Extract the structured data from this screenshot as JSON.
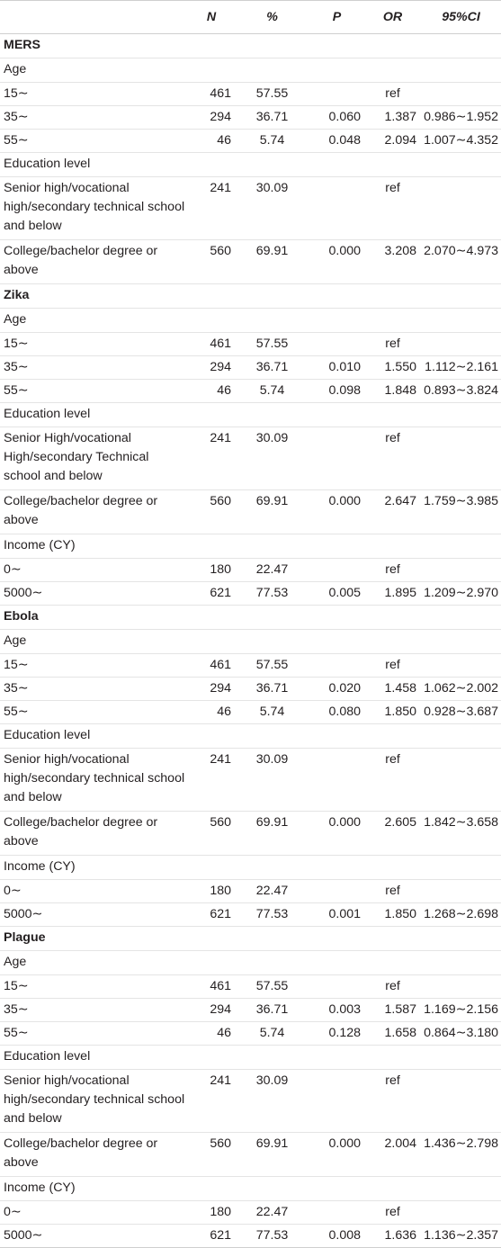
{
  "header": [
    "",
    "N",
    "%",
    "P",
    "OR",
    "95%CI"
  ],
  "rows": [
    {
      "type": "section",
      "label": "MERS"
    },
    {
      "type": "sub",
      "label": "Age"
    },
    {
      "type": "data",
      "lines": 1,
      "label": "15∼",
      "n": "461",
      "pct": "57.55",
      "p": "",
      "or": "ref",
      "ci": ""
    },
    {
      "type": "data",
      "lines": 1,
      "label": "35∼",
      "n": "294",
      "pct": "36.71",
      "p": "0.060",
      "or": "1.387",
      "ci": "0.986∼1.952"
    },
    {
      "type": "data",
      "lines": 1,
      "label": "55∼",
      "n": "46",
      "pct": "5.74",
      "p": "0.048",
      "or": "2.094",
      "ci": "1.007∼4.352"
    },
    {
      "type": "sub",
      "label": "Education level"
    },
    {
      "type": "data",
      "lines": 3,
      "label": "Senior high/vocational high/secondary technical school and below",
      "n": "241",
      "pct": "30.09",
      "p": "",
      "or": "ref",
      "ci": ""
    },
    {
      "type": "data",
      "lines": 2,
      "label": "College/bachelor degree or above",
      "n": "560",
      "pct": "69.91",
      "p": "0.000",
      "or": "3.208",
      "ci": "2.070∼4.973"
    },
    {
      "type": "section",
      "label": "Zika"
    },
    {
      "type": "sub",
      "label": "Age"
    },
    {
      "type": "data",
      "lines": 1,
      "label": "15∼",
      "n": "461",
      "pct": "57.55",
      "p": "",
      "or": "ref",
      "ci": ""
    },
    {
      "type": "data",
      "lines": 1,
      "label": "35∼",
      "n": "294",
      "pct": "36.71",
      "p": "0.010",
      "or": "1.550",
      "ci": "1.112∼2.161"
    },
    {
      "type": "data",
      "lines": 1,
      "label": "55∼",
      "n": "46",
      "pct": "5.74",
      "p": "0.098",
      "or": "1.848",
      "ci": "0.893∼3.824"
    },
    {
      "type": "sub",
      "label": "Education level"
    },
    {
      "type": "data",
      "lines": 3,
      "label": "Senior High/vocational High/secondary Technical school and below",
      "n": "241",
      "pct": "30.09",
      "p": "",
      "or": "ref",
      "ci": ""
    },
    {
      "type": "data",
      "lines": 2,
      "label": "College/bachelor degree or above",
      "n": "560",
      "pct": "69.91",
      "p": "0.000",
      "or": "2.647",
      "ci": "1.759∼3.985"
    },
    {
      "type": "sub",
      "label": "Income (CY)"
    },
    {
      "type": "data",
      "lines": 1,
      "label": "0∼",
      "n": "180",
      "pct": "22.47",
      "p": "",
      "or": "ref",
      "ci": ""
    },
    {
      "type": "data",
      "lines": 1,
      "label": "5000∼",
      "n": "621",
      "pct": "77.53",
      "p": "0.005",
      "or": "1.895",
      "ci": "1.209∼2.970"
    },
    {
      "type": "section",
      "label": "Ebola"
    },
    {
      "type": "sub",
      "label": "Age"
    },
    {
      "type": "data",
      "lines": 1,
      "label": "15∼",
      "n": "461",
      "pct": "57.55",
      "p": "",
      "or": "ref",
      "ci": ""
    },
    {
      "type": "data",
      "lines": 1,
      "label": "35∼",
      "n": "294",
      "pct": "36.71",
      "p": "0.020",
      "or": "1.458",
      "ci": "1.062∼2.002"
    },
    {
      "type": "data",
      "lines": 1,
      "label": "55∼",
      "n": "46",
      "pct": "5.74",
      "p": "0.080",
      "or": "1.850",
      "ci": "0.928∼3.687"
    },
    {
      "type": "sub",
      "label": "Education level"
    },
    {
      "type": "data",
      "lines": 3,
      "label": "Senior high/vocational high/secondary technical school and below",
      "n": "241",
      "pct": "30.09",
      "p": "",
      "or": "ref",
      "ci": ""
    },
    {
      "type": "data",
      "lines": 2,
      "label": "College/bachelor degree or above",
      "n": "560",
      "pct": "69.91",
      "p": "0.000",
      "or": "2.605",
      "ci": "1.842∼3.658"
    },
    {
      "type": "sub",
      "label": "Income (CY)"
    },
    {
      "type": "data",
      "lines": 1,
      "label": "0∼",
      "n": "180",
      "pct": "22.47",
      "p": "",
      "or": "ref",
      "ci": ""
    },
    {
      "type": "data",
      "lines": 1,
      "label": "5000∼",
      "n": "621",
      "pct": "77.53",
      "p": "0.001",
      "or": "1.850",
      "ci": "1.268∼2.698"
    },
    {
      "type": "section",
      "label": "Plague"
    },
    {
      "type": "sub",
      "label": "Age"
    },
    {
      "type": "data",
      "lines": 1,
      "label": "15∼",
      "n": "461",
      "pct": "57.55",
      "p": "",
      "or": "ref",
      "ci": ""
    },
    {
      "type": "data",
      "lines": 1,
      "label": "35∼",
      "n": "294",
      "pct": "36.71",
      "p": "0.003",
      "or": "1.587",
      "ci": "1.169∼2.156"
    },
    {
      "type": "data",
      "lines": 1,
      "label": "55∼",
      "n": "46",
      "pct": "5.74",
      "p": "0.128",
      "or": "1.658",
      "ci": "0.864∼3.180"
    },
    {
      "type": "sub",
      "label": "Education level"
    },
    {
      "type": "data",
      "lines": 3,
      "label": "Senior high/vocational high/secondary technical school and below",
      "n": "241",
      "pct": "30.09",
      "p": "",
      "or": "ref",
      "ci": ""
    },
    {
      "type": "data",
      "lines": 2,
      "label": "College/bachelor degree or above",
      "n": "560",
      "pct": "69.91",
      "p": "0.000",
      "or": "2.004",
      "ci": "1.436∼2.798"
    },
    {
      "type": "sub",
      "label": "Income (CY)"
    },
    {
      "type": "data",
      "lines": 1,
      "label": "0∼",
      "n": "180",
      "pct": "22.47",
      "p": "",
      "or": "ref",
      "ci": ""
    },
    {
      "type": "data",
      "lines": 1,
      "label": "5000∼",
      "n": "621",
      "pct": "77.53",
      "p": "0.008",
      "or": "1.636",
      "ci": "1.136∼2.357"
    }
  ]
}
